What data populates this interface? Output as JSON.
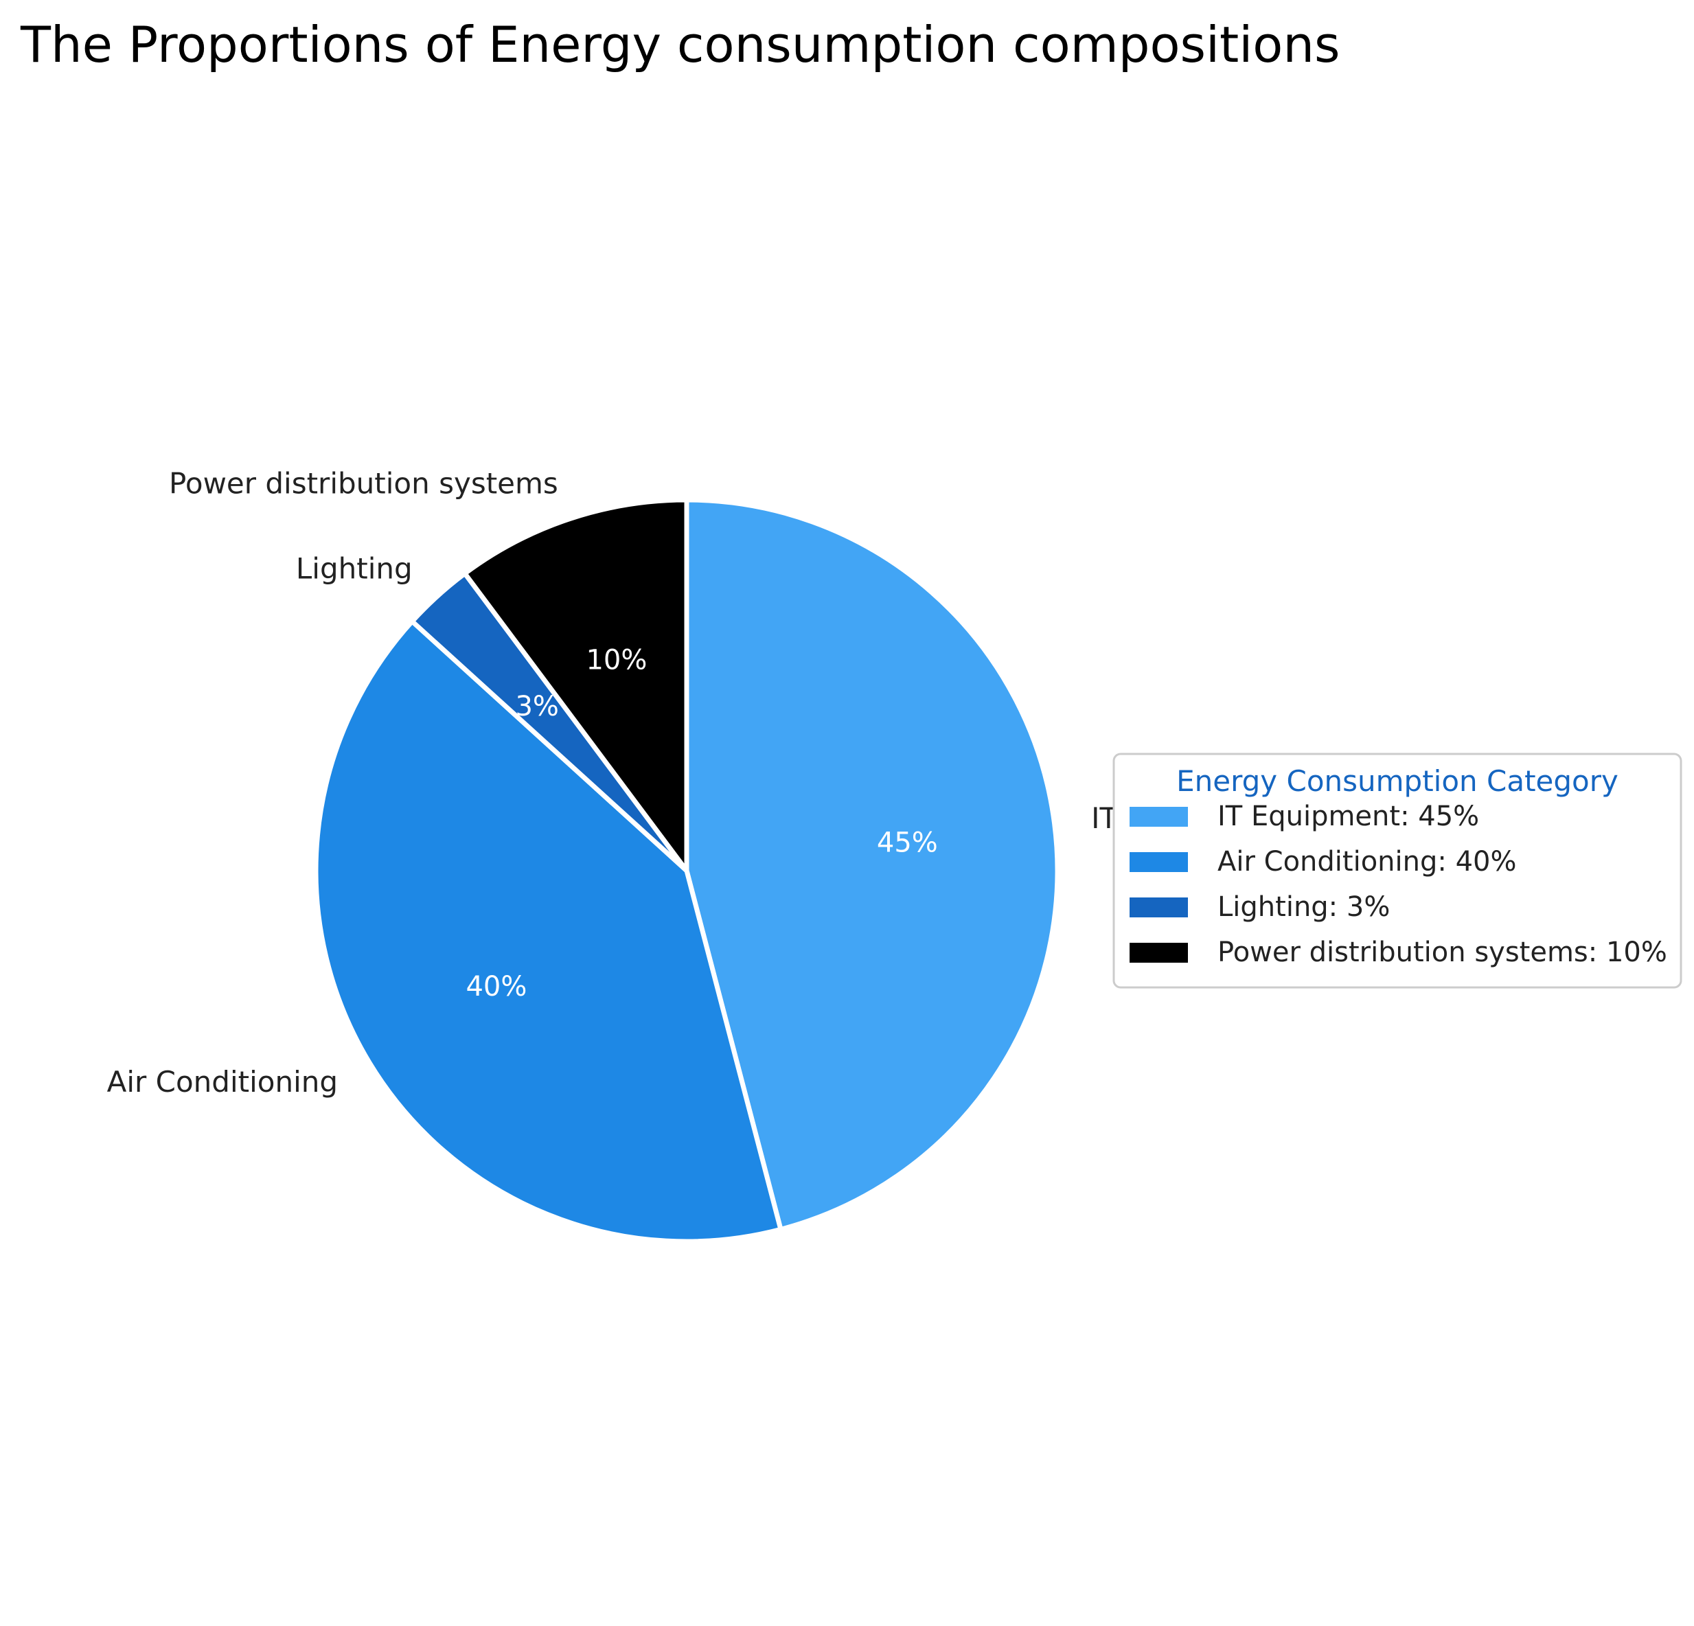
{
  "chart_data": {
    "type": "pie",
    "title": "The Proportions of Energy consumption compositions",
    "categories": [
      "IT Equipment",
      "Air Conditioning",
      "Lighting",
      "Power distribution systems"
    ],
    "values": [
      45,
      40,
      3,
      10
    ],
    "percent_labels": [
      "45%",
      "40%",
      "3%",
      "10%"
    ],
    "colors": [
      "#42a5f5",
      "#1e88e5",
      "#1565c0",
      "#000000"
    ],
    "start_angle_deg": 90,
    "direction": "clockwise",
    "legend": {
      "title": "Energy Consumption Category",
      "title_color": "#1565c0",
      "placement": "center-right",
      "entries": [
        "IT Equipment: 45%",
        "Air Conditioning: 40%",
        "Lighting: 3%",
        "Power distribution systems: 10%"
      ]
    }
  }
}
